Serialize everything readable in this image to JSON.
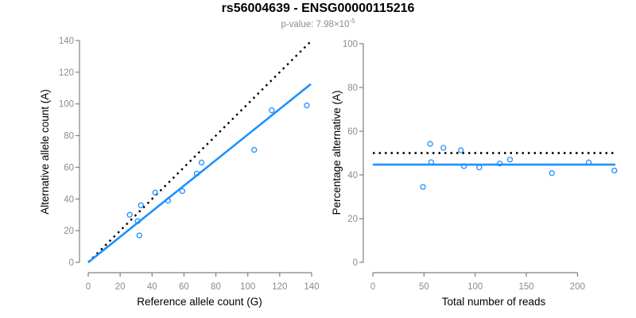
{
  "header": {
    "title": "rs56004639 - ENSG00000115216",
    "pvalue_main": "p-value: 7.98×10",
    "pvalue_exponent": "-5"
  },
  "colors": {
    "accent_blue": "#1E90FF",
    "identity_black": "#000000",
    "axis_line": "#808080",
    "tick_label": "#8c8c8c",
    "axis_title": "#000000",
    "background": "#ffffff"
  },
  "chart_data": [
    {
      "type": "scatter",
      "name": "allele-counts-panel",
      "xlabel": "Reference allele count (G)",
      "ylabel": "Alternative allele count (A)",
      "xlim": [
        0,
        140
      ],
      "ylim": [
        0,
        140
      ],
      "xticks": [
        0,
        20,
        40,
        60,
        80,
        100,
        120,
        140
      ],
      "yticks": [
        0,
        20,
        40,
        60,
        80,
        100,
        120,
        140
      ],
      "grid": false,
      "marker": "open-circle",
      "point_color": "#1E90FF",
      "points": [
        [
          26,
          30
        ],
        [
          31,
          26
        ],
        [
          32,
          17
        ],
        [
          33,
          36
        ],
        [
          42,
          44
        ],
        [
          50,
          39
        ],
        [
          59,
          45
        ],
        [
          68,
          56
        ],
        [
          71,
          63
        ],
        [
          104,
          71
        ],
        [
          115,
          96
        ],
        [
          137,
          99
        ]
      ],
      "lines": [
        {
          "name": "identity-line",
          "style": "dotted",
          "color": "#000000",
          "from": [
            0,
            0
          ],
          "to": [
            139,
            139
          ]
        },
        {
          "name": "fit-line",
          "style": "solid",
          "color": "#1E90FF",
          "from": [
            0,
            0
          ],
          "to": [
            139.5,
            112.5
          ]
        }
      ]
    },
    {
      "type": "scatter",
      "name": "percentage-panel",
      "xlabel": "Total number of reads",
      "ylabel": "Percentage alternative (A)",
      "xlim": [
        0,
        240
      ],
      "ylim": [
        0,
        100
      ],
      "xticks": [
        0,
        50,
        100,
        150,
        200
      ],
      "yticks": [
        0,
        20,
        40,
        60,
        80,
        100
      ],
      "grid": false,
      "marker": "open-circle",
      "point_color": "#1E90FF",
      "points": [
        [
          49,
          34.5
        ],
        [
          56,
          54.2
        ],
        [
          57,
          45.8
        ],
        [
          69,
          52.4
        ],
        [
          86,
          51.3
        ],
        [
          89,
          44
        ],
        [
          104,
          43.4
        ],
        [
          124,
          45.2
        ],
        [
          134,
          47
        ],
        [
          175,
          40.8
        ],
        [
          211,
          45.7
        ],
        [
          236,
          42
        ]
      ],
      "lines": [
        {
          "name": "null-50pct-line",
          "style": "dotted",
          "color": "#000000",
          "from": [
            0,
            50
          ],
          "to": [
            237,
            50
          ]
        },
        {
          "name": "fit-line",
          "style": "solid",
          "color": "#1E90FF",
          "from": [
            0,
            44.7
          ],
          "to": [
            237,
            44.7
          ]
        }
      ]
    }
  ]
}
